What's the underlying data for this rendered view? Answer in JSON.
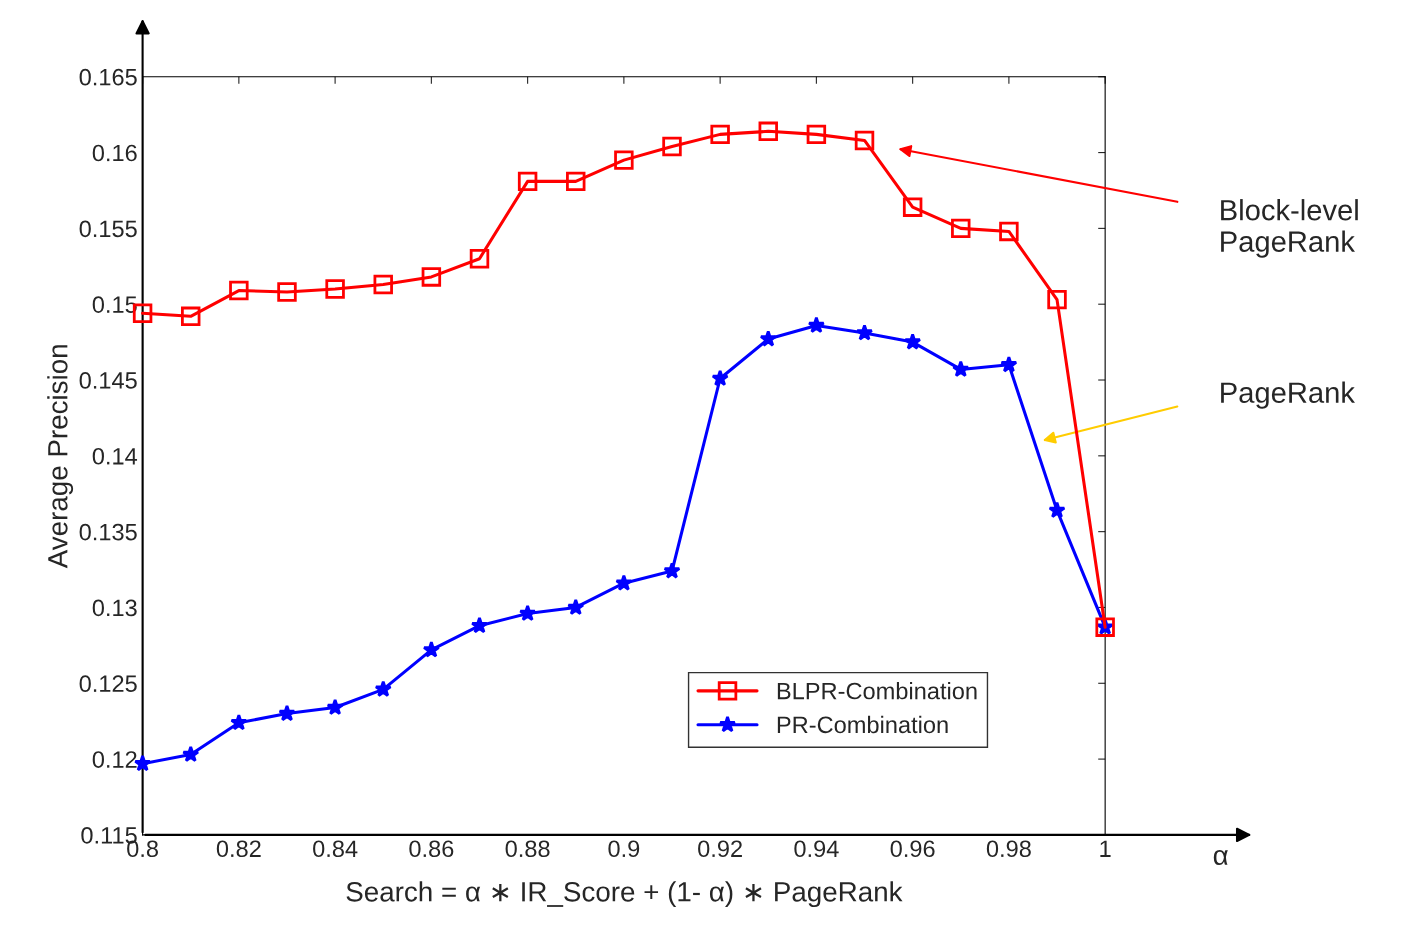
{
  "chart_data": {
    "type": "line",
    "xlabel": "Search = α ∗ IR_Score + (1- α) ∗ PageRank",
    "ylabel": "Average Precision",
    "x": [
      0.8,
      0.81,
      0.82,
      0.83,
      0.84,
      0.85,
      0.86,
      0.87,
      0.88,
      0.89,
      0.9,
      0.91,
      0.92,
      0.93,
      0.94,
      0.95,
      0.96,
      0.97,
      0.98,
      0.99,
      1.0
    ],
    "series": [
      {
        "name": "BLPR-Combination",
        "color": "#ff0000",
        "marker": "square",
        "values": [
          0.1494,
          0.1492,
          0.1509,
          0.1508,
          0.151,
          0.1513,
          0.1518,
          0.153,
          0.1581,
          0.1581,
          0.1595,
          0.1604,
          0.1612,
          0.1614,
          0.1612,
          0.1608,
          0.1564,
          0.155,
          0.1548,
          0.1503,
          0.1287
        ]
      },
      {
        "name": "PR-Combination",
        "color": "#0000ff",
        "marker": "star",
        "values": [
          0.1197,
          0.1203,
          0.1224,
          0.123,
          0.1234,
          0.1246,
          0.1272,
          0.1288,
          0.1296,
          0.13,
          0.1316,
          0.1324,
          0.1451,
          0.1477,
          0.1486,
          0.1481,
          0.1475,
          0.1457,
          0.146,
          0.1364,
          0.1287
        ]
      }
    ],
    "xlim": [
      0.8,
      1.0
    ],
    "ylim": [
      0.115,
      0.165
    ],
    "xticks": [
      0.8,
      0.82,
      0.84,
      0.86,
      0.88,
      0.9,
      0.92,
      0.94,
      0.96,
      0.98,
      1
    ],
    "yticks": [
      0.115,
      0.12,
      0.125,
      0.13,
      0.135,
      0.14,
      0.145,
      0.15,
      0.155,
      0.16,
      0.165
    ],
    "annotations": [
      "Block-level\nPageRank",
      "PageRank",
      "α"
    ],
    "legend": "bottom right",
    "grid": false,
    "line_style": "solid"
  }
}
